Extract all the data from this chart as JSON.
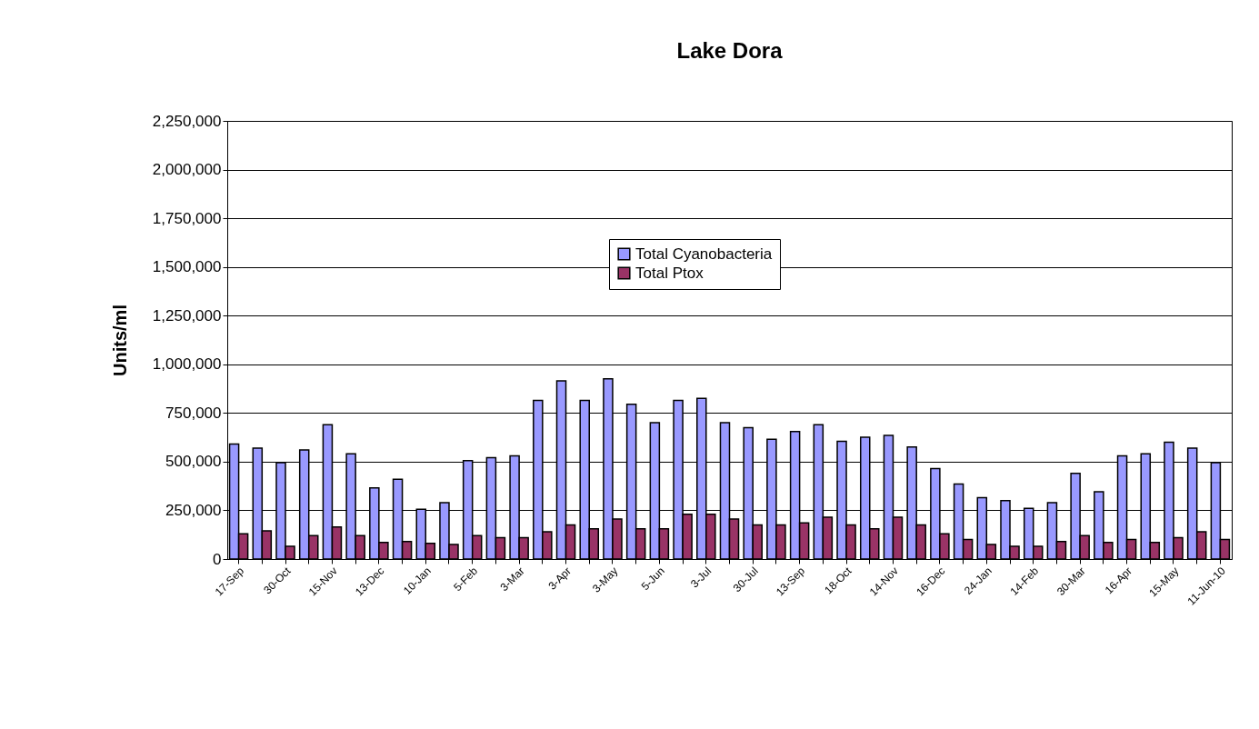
{
  "chart_data": {
    "type": "bar",
    "title": "Lake Dora",
    "ylabel": "Units/ml",
    "categories": [
      "17-Sep",
      null,
      "30-Oct",
      null,
      "15-Nov",
      null,
      "13-Dec",
      null,
      "10-Jan",
      null,
      "5-Feb",
      null,
      "3-Mar",
      null,
      "3-Apr",
      null,
      "3-May",
      null,
      "5-Jun",
      null,
      "3-Jul",
      null,
      "30-Jul",
      null,
      "13-Sep",
      null,
      "18-Oct",
      null,
      "14-Nov",
      null,
      "16-Dec",
      null,
      "24-Jan",
      null,
      "14-Feb",
      null,
      "30-Mar",
      null,
      "16-Apr",
      null,
      "15-May",
      null,
      "11-Jun-10"
    ],
    "series": [
      {
        "name": "Total Cyanobacteria",
        "color": "#9999ff",
        "values": [
          590000,
          570000,
          495000,
          560000,
          690000,
          540000,
          365000,
          410000,
          255000,
          290000,
          505000,
          520000,
          530000,
          815000,
          915000,
          815000,
          925000,
          795000,
          700000,
          815000,
          825000,
          700000,
          675000,
          615000,
          655000,
          690000,
          605000,
          625000,
          635000,
          575000,
          465000,
          385000,
          315000,
          300000,
          260000,
          290000,
          440000,
          345000,
          530000,
          540000,
          600000,
          570000,
          495000
        ]
      },
      {
        "name": "Total Ptox",
        "color": "#993366",
        "values": [
          130000,
          145000,
          65000,
          120000,
          165000,
          120000,
          85000,
          90000,
          80000,
          75000,
          120000,
          110000,
          110000,
          140000,
          175000,
          155000,
          205000,
          155000,
          155000,
          230000,
          230000,
          205000,
          175000,
          175000,
          185000,
          215000,
          175000,
          155000,
          215000,
          175000,
          130000,
          100000,
          75000,
          65000,
          65000,
          90000,
          120000,
          85000,
          100000,
          85000,
          110000,
          140000,
          100000
        ]
      }
    ],
    "ylim": [
      0,
      2250000
    ],
    "yticks": [
      0,
      {
        "value": 250000,
        "label": "250,000"
      },
      {
        "value": 500000,
        "label": "500,000"
      },
      {
        "value": 750000,
        "label": "750,000"
      },
      {
        "value": 1000000,
        "label": "1,000,000"
      },
      {
        "value": 1250000,
        "label": "1,250,000"
      },
      {
        "value": 1500000,
        "label": "1,500,000"
      },
      {
        "value": 1750000,
        "label": "1,750,000"
      },
      {
        "value": 2000000,
        "label": "2,000,000"
      },
      {
        "value": 2250000,
        "label": "2,250,000"
      }
    ],
    "grid": "y",
    "legend": "top"
  }
}
